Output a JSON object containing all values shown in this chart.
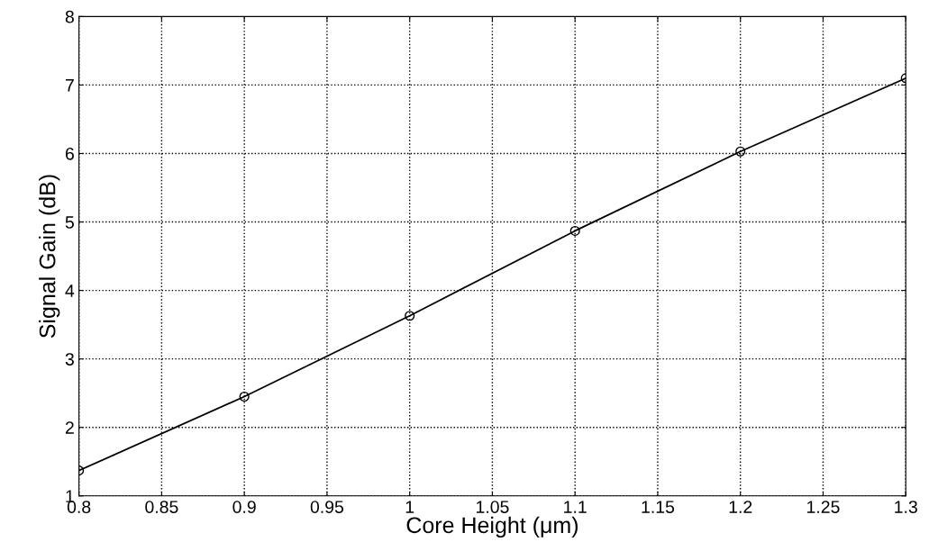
{
  "chart_data": {
    "type": "line",
    "xlabel": "Core Height (μm)",
    "ylabel": "Signal Gain (dB)",
    "x": [
      0.8,
      0.9,
      1.0,
      1.1,
      1.2,
      1.3
    ],
    "series": [
      {
        "color": "#000000",
        "values": [
          1.37,
          2.45,
          3.63,
          4.87,
          6.03,
          7.1
        ]
      }
    ],
    "xlim": [
      0.8,
      1.3
    ],
    "xticks": [
      0.8,
      0.85,
      0.9,
      0.95,
      1,
      1.05,
      1.1,
      1.15,
      1.2,
      1.25,
      1.3
    ],
    "ylim": [
      1,
      8
    ],
    "yticks": [
      1,
      2,
      3,
      4,
      5,
      6,
      7,
      8
    ],
    "grid": true,
    "marker": "circle",
    "line_style": "solid"
  }
}
